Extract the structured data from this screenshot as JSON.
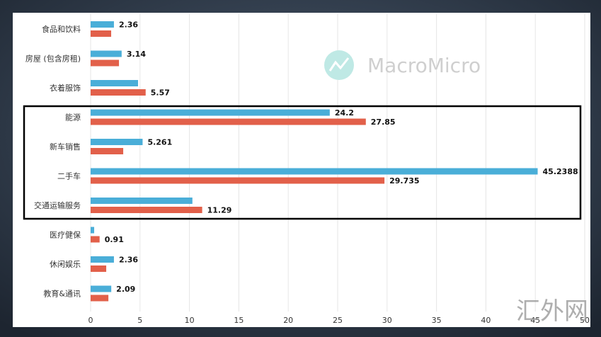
{
  "chart_data": {
    "type": "bar",
    "orientation": "horizontal",
    "categories": [
      "食品和饮料",
      "房屋 (包含房租)",
      "衣着服饰",
      "能源",
      "新车销售",
      "二手车",
      "交通运输服务",
      "医疗健保",
      "休闲娱乐",
      "教育&通讯"
    ],
    "series": [
      {
        "color": "#4aaed8",
        "values": [
          2.36,
          3.14,
          4.8,
          24.2,
          5.261,
          45.2388,
          10.3,
          0.36,
          2.36,
          2.09
        ],
        "value_labels": [
          "2.36",
          "3.14",
          null,
          "24.2",
          "5.261",
          "45.2388",
          null,
          null,
          "2.36",
          "2.09"
        ]
      },
      {
        "color": "#e2604a",
        "values": [
          2.08,
          2.87,
          5.57,
          27.85,
          3.3,
          29.735,
          11.29,
          0.91,
          1.58,
          1.8
        ],
        "value_labels": [
          null,
          null,
          "5.57",
          "27.85",
          null,
          "29.735",
          "11.29",
          "0.91",
          null,
          null
        ]
      }
    ],
    "xlim": [
      0,
      50
    ],
    "xticks": [
      0,
      5,
      10,
      15,
      20,
      25,
      30,
      35,
      40,
      45,
      50
    ],
    "grid": true
  },
  "watermarks": [
    "MacroMicro",
    "汇外网"
  ]
}
